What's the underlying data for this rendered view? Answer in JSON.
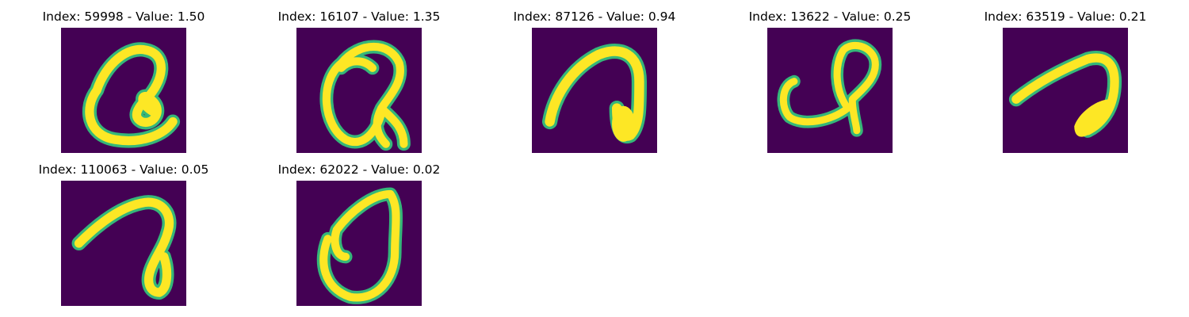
{
  "panels": [
    {
      "title": "Index: 59998 - Value: 1.50"
    },
    {
      "title": "Index: 16107 - Value: 1.35"
    },
    {
      "title": "Index: 87126 - Value: 0.94"
    },
    {
      "title": "Index: 13622 - Value: 0.25"
    },
    {
      "title": "Index: 63519 - Value: 0.21"
    },
    {
      "title": "Index: 110063 - Value: 0.05"
    },
    {
      "title": "Index: 62022 - Value: 0.02"
    }
  ],
  "colors": {
    "background": "#440154",
    "stroke_core": "#fde725",
    "stroke_edge": "#35b779",
    "stroke_mid": "#21918c"
  }
}
